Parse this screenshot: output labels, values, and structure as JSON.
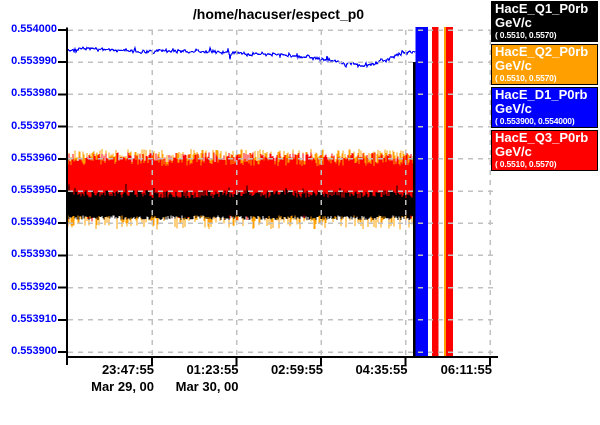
{
  "chart_data": {
    "type": "line",
    "title": "/home/hacuser/espect_p0",
    "x_tick_labels": [
      "23:47:55",
      "01:23:55",
      "02:59:55",
      "04:35:55",
      "06:11:55"
    ],
    "x_date_labels": [
      "Mar 29, 00",
      "Mar 30, 00"
    ],
    "y_tick_labels": [
      "0.554000",
      "0.553990",
      "0.553980",
      "0.553970",
      "0.553960",
      "0.553950",
      "0.553940",
      "0.553930",
      "0.553920",
      "0.553910",
      "0.553900"
    ],
    "y_min": 0.5539,
    "y_max": 0.554,
    "grid": true,
    "grid_color": "#c0c0c0",
    "axis_color": "#000000",
    "y_label_color": "#0000ff",
    "x_label_color": "#000000",
    "noise_seed": 20000330,
    "band_draw_order": [
      1,
      3,
      0
    ],
    "line_series_index": 2,
    "series": [
      {
        "name": "HacE_Q1_P0rb",
        "unit": "GeV/c",
        "display_range": "( 0.5510, 0.5570)",
        "color": "#000000",
        "kind": "noise_band",
        "band": {
          "top_base": 0.5539478,
          "top_rand": 2.6e-06,
          "top_spike_chance": 0.12,
          "top_spike_extra": 2.2e-06,
          "bot_base": 0.5539424,
          "bot_rand": 1.4e-06
        }
      },
      {
        "name": "HacE_Q2_P0rb",
        "unit": "GeV/c",
        "display_range": "( 0.5510, 0.5570)",
        "color": "#ffa000",
        "kind": "noise_band",
        "band": {
          "top_base": 0.553959,
          "top_rand": 4e-06,
          "bot_base": 0.5539435,
          "bot_rand": 5.5e-06,
          "bot_pow": 1.6
        }
      },
      {
        "name": "HacE_D1_P0rb",
        "unit": "GeV/c",
        "display_range": "( 0.553900, 0.554000)",
        "color": "#0000ff",
        "kind": "line",
        "noise": 8e-07,
        "points": [
          [
            68,
            0.5539936
          ],
          [
            85,
            0.5539941
          ],
          [
            110,
            0.5539938
          ],
          [
            140,
            0.5539933
          ],
          [
            170,
            0.5539936
          ],
          [
            200,
            0.5539934
          ],
          [
            230,
            0.5539928
          ],
          [
            255,
            0.5539925
          ],
          [
            285,
            0.5539923
          ],
          [
            305,
            0.5539917
          ],
          [
            325,
            0.5539908
          ],
          [
            345,
            0.5539897
          ],
          [
            360,
            0.553989
          ],
          [
            372,
            0.5539893
          ],
          [
            385,
            0.5539906
          ],
          [
            395,
            0.553992
          ],
          [
            405,
            0.5539929
          ],
          [
            415,
            0.5539931
          ]
        ]
      },
      {
        "name": "HacE_Q3_P0rb",
        "unit": "GeV/c",
        "display_range": "( 0.5510, 0.5570)",
        "color": "#ff0000",
        "kind": "noise_band",
        "band": {
          "top_base": 0.5539578,
          "top_rand": 4.2e-06,
          "bot_base": 0.5539465,
          "bot_rand": 2.2e-06,
          "bot_spike_chance": 0.1,
          "bot_spike_extra": 4e-06
        }
      }
    ],
    "end_bars": [
      {
        "color": "#000000",
        "x": 413,
        "w": 2.5,
        "top_value": 0.55399
      },
      {
        "color": "#0000ff",
        "x": 415.5,
        "w": 12.5
      },
      {
        "color": "#ff0000",
        "x": 432,
        "w": 6.5
      },
      {
        "color": "#ffa000",
        "x": 444,
        "w": 2
      },
      {
        "color": "#ff0000",
        "x": 446,
        "w": 7
      }
    ]
  },
  "legend": {
    "entries_note": "legend rows bind directly to chart_data.series"
  }
}
